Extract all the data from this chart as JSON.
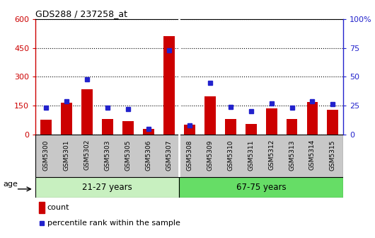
{
  "title": "GDS288 / 237258_at",
  "samples": [
    "GSM5300",
    "GSM5301",
    "GSM5302",
    "GSM5303",
    "GSM5305",
    "GSM5306",
    "GSM5307",
    "GSM5308",
    "GSM5309",
    "GSM5310",
    "GSM5311",
    "GSM5312",
    "GSM5313",
    "GSM5314",
    "GSM5315"
  ],
  "counts": [
    75,
    165,
    235,
    80,
    70,
    30,
    510,
    50,
    200,
    80,
    55,
    135,
    80,
    170,
    130
  ],
  "percentiles": [
    23,
    29,
    48,
    23,
    22,
    5,
    73,
    8,
    45,
    24,
    20,
    27,
    23,
    29,
    26
  ],
  "group1_label": "21-27 years",
  "group2_label": "67-75 years",
  "group1_count": 7,
  "group2_count": 8,
  "ylim_left": [
    0,
    600
  ],
  "ylim_right": [
    0,
    100
  ],
  "yticks_left": [
    0,
    150,
    300,
    450,
    600
  ],
  "yticks_right": [
    0,
    25,
    50,
    75,
    100
  ],
  "bar_color": "#cc0000",
  "dot_color": "#2222cc",
  "age_label": "age",
  "legend_count": "count",
  "legend_percentile": "percentile rank within the sample",
  "bg_plot": "#ffffff",
  "bg_xtick": "#c8c8c8",
  "bg_group1": "#c8f0c0",
  "bg_group2": "#66dd66",
  "title_color": "#000000",
  "left_axis_color": "#cc0000",
  "right_axis_color": "#2222cc",
  "grid_color": "#000000",
  "separator_color": "#ffffff"
}
